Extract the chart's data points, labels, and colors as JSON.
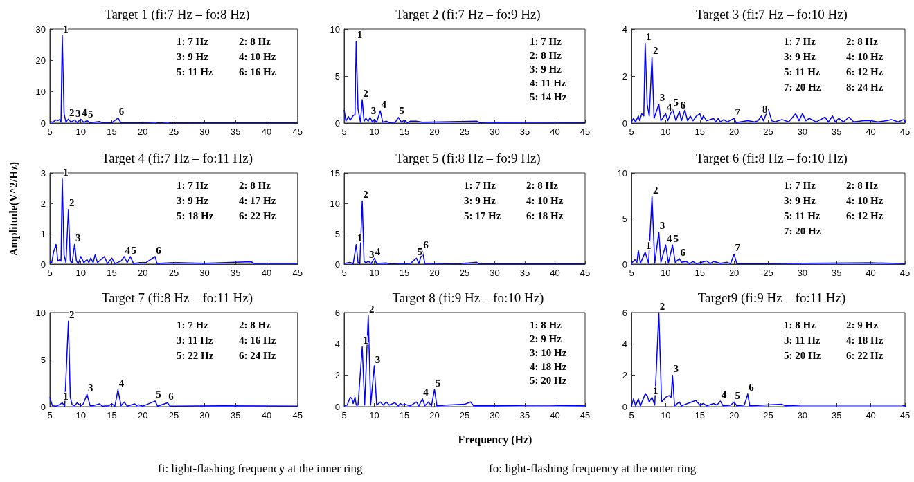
{
  "chart_data": [
    {
      "type": "line",
      "title": "Target 1 (fi:7 Hz – fo:8 Hz)",
      "color": "#0000ff",
      "xlim": [
        5,
        45
      ],
      "xticks": [
        5,
        10,
        15,
        20,
        25,
        30,
        35,
        40,
        45
      ],
      "ylim": [
        0,
        30
      ],
      "yticks": [
        0,
        10,
        20,
        30
      ],
      "x": [
        5,
        5.5,
        6,
        6.3,
        6.6,
        6.8,
        7,
        7.3,
        7.6,
        8,
        8.4,
        9,
        9.4,
        10,
        10.5,
        11,
        11.5,
        13,
        13.5,
        14,
        15,
        16,
        16.5,
        20,
        22,
        22.5,
        24,
        24.5,
        30,
        45
      ],
      "values": [
        0.5,
        0.3,
        1,
        0.8,
        1.2,
        0.3,
        28,
        3,
        0.3,
        1.3,
        0.3,
        1,
        0.2,
        1.2,
        0.2,
        0.8,
        0.1,
        0.5,
        0.1,
        0.2,
        0.1,
        1.6,
        0.1,
        0.1,
        0.3,
        0.05,
        0.3,
        0.05,
        0.1,
        0.1
      ],
      "annotations": [
        "1: 7 Hz",
        "2: 8 Hz",
        "3: 9 Hz",
        "4: 10 Hz",
        "5: 11 Hz",
        "6: 16 Hz",
        {
          "text": "1",
          "x": 7,
          "y": 28
        },
        {
          "text": "2",
          "x": 8,
          "y": 1.3
        },
        {
          "text": "3",
          "x": 9,
          "y": 1
        },
        {
          "text": "4",
          "x": 10,
          "y": 1.2
        },
        {
          "text": "5",
          "x": 11,
          "y": 0.8
        },
        {
          "text": "6",
          "x": 16,
          "y": 1.6
        }
      ]
    },
    {
      "type": "line",
      "title": "Target 2 (fi:7 Hz – fo:9 Hz)",
      "color": "#0000ff",
      "xlim": [
        5,
        45
      ],
      "xticks": [
        5,
        10,
        15,
        20,
        25,
        30,
        35,
        40,
        45
      ],
      "ylim": [
        0,
        10
      ],
      "yticks": [
        0,
        5,
        10
      ],
      "x": [
        5,
        5.3,
        5.7,
        6,
        6.5,
        6.8,
        7,
        7.3,
        7.7,
        8,
        8.3,
        8.6,
        9,
        9.3,
        9.7,
        10,
        10.4,
        11,
        11.4,
        12,
        12.5,
        13.5,
        14,
        14.5,
        15,
        15.5,
        16,
        17,
        18,
        27,
        27.5,
        30,
        45
      ],
      "values": [
        1.4,
        0.2,
        0.7,
        0.3,
        0.8,
        0.9,
        8.7,
        1.5,
        0.1,
        2.5,
        0.2,
        0.5,
        0.2,
        0.6,
        0.1,
        0.4,
        0.1,
        1.3,
        0.1,
        0.2,
        0.05,
        0.1,
        0.6,
        0.1,
        0.3,
        0.05,
        0.2,
        0.2,
        0.1,
        0.2,
        0.05,
        0.1,
        0.05
      ],
      "annotations": [
        "1: 7 Hz",
        "2: 8 Hz",
        "3: 9 Hz",
        "4: 11 Hz",
        "5: 14 Hz",
        {
          "text": "1",
          "x": 7,
          "y": 8.7
        },
        {
          "text": "2",
          "x": 8,
          "y": 2.5
        },
        {
          "text": "3",
          "x": 9.3,
          "y": 0.6
        },
        {
          "text": "4",
          "x": 11,
          "y": 1.3
        },
        {
          "text": "5",
          "x": 14,
          "y": 0.6
        }
      ]
    },
    {
      "type": "line",
      "title": "Target 3 (fi:7 Hz – fo:10 Hz)",
      "color": "#0000ff",
      "xlim": [
        5,
        45
      ],
      "xticks": [
        5,
        10,
        15,
        20,
        25,
        30,
        35,
        40,
        45
      ],
      "ylim": [
        0,
        4
      ],
      "yticks": [
        0,
        2,
        4
      ],
      "x": [
        5,
        5.3,
        5.6,
        6,
        6.2,
        6.5,
        6.8,
        7,
        7.3,
        7.6,
        8,
        8.3,
        9,
        9.3,
        10,
        10.3,
        11,
        11.5,
        12,
        12.3,
        12.8,
        13.2,
        13.6,
        14,
        14.5,
        15,
        15.3,
        15.5,
        16,
        17,
        17.3,
        17.7,
        18,
        18.5,
        19,
        20,
        20.3,
        22,
        23,
        23.5,
        24,
        24.3,
        25,
        25.5,
        26,
        27,
        28,
        29,
        29.5,
        30,
        30.5,
        31,
        32,
        33.3,
        33.8,
        34.4,
        34.8,
        35.3,
        36,
        36.8,
        37.5,
        39,
        40,
        41,
        42.3,
        43,
        44,
        44.8,
        45
      ],
      "values": [
        0.05,
        0.2,
        0.05,
        0.3,
        0.1,
        0.4,
        0.3,
        3.4,
        0.8,
        0.3,
        2.8,
        0.2,
        0.8,
        0.1,
        0.4,
        0.1,
        0.6,
        0.1,
        0.5,
        0.1,
        0.55,
        0.1,
        0.3,
        0.1,
        0.3,
        0.4,
        0.15,
        0.3,
        0.1,
        0.2,
        0.05,
        0.2,
        0.05,
        0.15,
        0.05,
        0.2,
        0.02,
        0.1,
        0.05,
        0.1,
        0.3,
        0.1,
        0.6,
        0.1,
        0.05,
        0.15,
        0.05,
        0.4,
        0.1,
        0.4,
        0.1,
        0.2,
        0.05,
        0.25,
        0.05,
        0.3,
        0.05,
        0.2,
        0.05,
        0.25,
        0.05,
        0.1,
        0.1,
        0.05,
        0.1,
        0.15,
        0.05,
        0.15,
        0.05
      ],
      "annotations": [
        "1: 7 Hz",
        "2: 8 Hz",
        "3: 9 Hz",
        "4: 10 Hz",
        "5: 11 Hz",
        "6: 12 Hz",
        "7: 20 Hz",
        "8: 24 Hz",
        {
          "text": "1",
          "x": 7,
          "y": 3.4
        },
        {
          "text": "2",
          "x": 8,
          "y": 2.8
        },
        {
          "text": "3",
          "x": 9,
          "y": 0.8
        },
        {
          "text": "4",
          "x": 10,
          "y": 0.4
        },
        {
          "text": "5",
          "x": 11,
          "y": 0.6
        },
        {
          "text": "6",
          "x": 12,
          "y": 0.5
        },
        {
          "text": "7",
          "x": 20,
          "y": 0.2
        },
        {
          "text": "8",
          "x": 24,
          "y": 0.3
        }
      ]
    },
    {
      "type": "line",
      "title": "Target 4 (fi:7 Hz – fo:11 Hz)",
      "color": "#0000ff",
      "xlim": [
        5,
        45
      ],
      "xticks": [
        5,
        10,
        15,
        20,
        25,
        30,
        35,
        40,
        45
      ],
      "ylim": [
        0,
        3
      ],
      "yticks": [
        0,
        1,
        2,
        3
      ],
      "x": [
        5,
        5.3,
        5.6,
        6,
        6.3,
        6.6,
        6.8,
        7,
        7.3,
        7.6,
        8,
        8.3,
        8.6,
        9,
        9.3,
        9.6,
        10,
        10.5,
        11,
        11.3,
        11.6,
        12,
        12.3,
        12.7,
        13.8,
        14.3,
        15,
        15.5,
        16.5,
        17,
        17.5,
        18,
        18.5,
        19.5,
        20.5,
        22,
        22.3,
        25,
        30,
        37.5,
        38,
        45
      ],
      "values": [
        0.1,
        0.05,
        0.4,
        0.65,
        0.1,
        0.15,
        0.1,
        2.8,
        0.3,
        0.05,
        1.8,
        0.1,
        0.05,
        0.65,
        0.1,
        0.02,
        0.25,
        0.05,
        0.15,
        0.05,
        0.2,
        0.05,
        0.3,
        0.05,
        0.25,
        0.02,
        0.2,
        0.02,
        0.1,
        0.25,
        0.05,
        0.25,
        0.02,
        0.05,
        0.05,
        0.25,
        0.02,
        0.05,
        0.03,
        0.08,
        0.02,
        0.02
      ],
      "annotations": [
        "1: 7 Hz",
        "2: 8 Hz",
        "3: 9 Hz",
        "4: 17 Hz",
        "5: 18 Hz",
        "6: 22 Hz",
        {
          "text": "1",
          "x": 7,
          "y": 2.8
        },
        {
          "text": "2",
          "x": 8,
          "y": 1.8
        },
        {
          "text": "3",
          "x": 9,
          "y": 0.65
        },
        {
          "text": "4",
          "x": 17,
          "y": 0.25
        },
        {
          "text": "5",
          "x": 18,
          "y": 0.25
        },
        {
          "text": "6",
          "x": 22,
          "y": 0.25
        }
      ]
    },
    {
      "type": "line",
      "title": "Target 5 (fi:8 Hz – fo:9 Hz)",
      "color": "#0000ff",
      "xlim": [
        5,
        45
      ],
      "xticks": [
        5,
        10,
        15,
        20,
        25,
        30,
        35,
        40,
        45
      ],
      "ylim": [
        0,
        15
      ],
      "yticks": [
        0,
        5,
        10,
        15
      ],
      "x": [
        5,
        6,
        6.5,
        7,
        7.3,
        7.6,
        8,
        8.3,
        8.6,
        9,
        9.5,
        10,
        10.4,
        12,
        12.5,
        14.5,
        16,
        17,
        17.4,
        18,
        18.4,
        20,
        24,
        27,
        27.4,
        35,
        45
      ],
      "values": [
        0.1,
        0.3,
        0.05,
        3.2,
        0.3,
        0.05,
        10.4,
        0.5,
        0.2,
        0.5,
        0.1,
        1.0,
        0.1,
        0.2,
        0.05,
        0.1,
        0.1,
        1.0,
        0.1,
        2.1,
        0.1,
        0.1,
        0.05,
        0.3,
        0.05,
        0.05,
        0.05
      ],
      "annotations": [
        "1: 7 Hz",
        "2: 8 Hz",
        "3: 9 Hz",
        "4: 10 Hz",
        "5: 17 Hz",
        "6: 18 Hz",
        {
          "text": "1",
          "x": 7,
          "y": 3.2
        },
        {
          "text": "2",
          "x": 8,
          "y": 10.4
        },
        {
          "text": "3",
          "x": 9,
          "y": 0.5
        },
        {
          "text": "4",
          "x": 10,
          "y": 1.0
        },
        {
          "text": "5",
          "x": 17,
          "y": 1.0
        },
        {
          "text": "6",
          "x": 18,
          "y": 2.1
        }
      ]
    },
    {
      "type": "line",
      "title": "Target 6 (fi:8 Hz – fo:10 Hz)",
      "color": "#0000ff",
      "xlim": [
        5,
        45
      ],
      "xticks": [
        5,
        10,
        15,
        20,
        25,
        30,
        35,
        40,
        45
      ],
      "ylim": [
        0,
        10
      ],
      "yticks": [
        0,
        5,
        10
      ],
      "x": [
        5,
        5.5,
        5.8,
        6,
        6.3,
        7,
        7.5,
        8,
        8.4,
        9,
        9.3,
        10,
        10.4,
        11,
        11.4,
        12,
        12.3,
        13,
        13.5,
        14,
        14.5,
        16,
        16.5,
        17,
        18,
        19,
        19.5,
        20,
        20.4,
        25,
        30,
        40,
        45
      ],
      "values": [
        0.1,
        0.5,
        0.2,
        1.5,
        0.1,
        1.3,
        0.1,
        7.4,
        0.1,
        3.5,
        0.2,
        2.1,
        0.1,
        2.1,
        0.2,
        0.6,
        0.2,
        0.3,
        0.05,
        0.3,
        0.05,
        0.35,
        0.05,
        0.3,
        0.1,
        0.2,
        0.05,
        1.1,
        0.05,
        0.05,
        0.1,
        0.15,
        0.05
      ],
      "annotations": [
        "1: 7 Hz",
        "2: 8 Hz",
        "3: 9 Hz",
        "4: 10 Hz",
        "5: 11 Hz",
        "6: 12 Hz",
        "7: 20 Hz",
        {
          "text": "1",
          "x": 7,
          "y": 1.3
        },
        {
          "text": "2",
          "x": 8,
          "y": 7.4
        },
        {
          "text": "3",
          "x": 9,
          "y": 3.5
        },
        {
          "text": "4",
          "x": 10,
          "y": 2.1
        },
        {
          "text": "5",
          "x": 11,
          "y": 2.1
        },
        {
          "text": "6",
          "x": 12,
          "y": 0.6
        },
        {
          "text": "7",
          "x": 20,
          "y": 1.1
        }
      ]
    },
    {
      "type": "line",
      "title": "Target 7 (fi:8 Hz – fo:11 Hz)",
      "color": "#0000ff",
      "xlim": [
        5,
        45
      ],
      "xticks": [
        5,
        10,
        15,
        20,
        25,
        30,
        35,
        40,
        45
      ],
      "ylim": [
        0,
        10
      ],
      "yticks": [
        0,
        5,
        10
      ],
      "x": [
        5,
        5.4,
        6,
        6.5,
        7,
        7.4,
        8,
        8.3,
        8.6,
        9,
        9.4,
        10,
        10.4,
        11,
        11.5,
        12,
        13,
        13.5,
        14.5,
        15,
        15.5,
        16,
        16.5,
        17,
        17.5,
        18.7,
        19,
        19.3,
        20,
        22,
        22.4,
        24,
        24.4,
        33,
        45
      ],
      "values": [
        1.0,
        0.1,
        0.05,
        0.2,
        0.4,
        0.05,
        9.1,
        1.0,
        0.2,
        0.1,
        0.4,
        0.1,
        0.3,
        1.3,
        0.1,
        0.1,
        0.3,
        0.05,
        0.1,
        0.3,
        0.05,
        1.8,
        0.1,
        0.5,
        0.05,
        0.3,
        0.1,
        0.2,
        0.05,
        0.6,
        0.05,
        0.4,
        0.05,
        0.1,
        0.05
      ],
      "annotations": [
        "1: 7 Hz",
        "2: 8 Hz",
        "3: 11 Hz",
        "4: 16 Hz",
        "5: 22 Hz",
        "6: 24 Hz",
        {
          "text": "1",
          "x": 7,
          "y": 0.4
        },
        {
          "text": "2",
          "x": 8,
          "y": 9.1
        },
        {
          "text": "3",
          "x": 11,
          "y": 1.3
        },
        {
          "text": "4",
          "x": 16,
          "y": 1.8
        },
        {
          "text": "5",
          "x": 22,
          "y": 0.6
        },
        {
          "text": "6",
          "x": 24,
          "y": 0.4
        }
      ]
    },
    {
      "type": "line",
      "title": "Target 8 (fi:9 Hz – fo:10 Hz)",
      "color": "#0000ff",
      "xlim": [
        5,
        45
      ],
      "xticks": [
        5,
        10,
        15,
        20,
        25,
        30,
        35,
        40,
        45
      ],
      "ylim": [
        0,
        6
      ],
      "yticks": [
        0,
        2,
        4,
        6
      ],
      "x": [
        5,
        5.5,
        6,
        6.3,
        6.5,
        6.8,
        7,
        7.3,
        8,
        8.4,
        9,
        9.4,
        10,
        10.4,
        11,
        11.5,
        12,
        12.5,
        13.4,
        14,
        14.3,
        14.7,
        15,
        16,
        17,
        17.4,
        18,
        18.4,
        19,
        19.5,
        20,
        20.4,
        22,
        25,
        26,
        26.5,
        30,
        37,
        45
      ],
      "values": [
        0.05,
        0.1,
        0.6,
        0.5,
        0.2,
        0.6,
        0.1,
        0.1,
        3.8,
        0.1,
        5.8,
        0.1,
        2.6,
        0.1,
        0.3,
        0.1,
        0.3,
        0.1,
        0.25,
        0.05,
        0.2,
        0.1,
        0.15,
        0.05,
        0.3,
        0.05,
        0.5,
        0.05,
        0.3,
        0.05,
        1.1,
        0.05,
        0.1,
        0.15,
        0.3,
        0.05,
        0.05,
        0.1,
        0.05
      ],
      "annotations": [
        "1: 8 Hz",
        "2: 9 Hz",
        "3: 10 Hz",
        "4: 18 Hz",
        "5: 20 Hz",
        {
          "text": "1",
          "x": 8,
          "y": 3.8
        },
        {
          "text": "2",
          "x": 9,
          "y": 5.8
        },
        {
          "text": "3",
          "x": 10,
          "y": 2.6
        },
        {
          "text": "4",
          "x": 18,
          "y": 0.5
        },
        {
          "text": "5",
          "x": 20,
          "y": 1.1
        }
      ]
    },
    {
      "type": "line",
      "title": "Target9 (fi:9 Hz – fo:11 Hz)",
      "color": "#0000ff",
      "xlim": [
        5,
        45
      ],
      "xticks": [
        5,
        10,
        15,
        20,
        25,
        30,
        35,
        40,
        45
      ],
      "ylim": [
        0,
        6
      ],
      "yticks": [
        0,
        2,
        4,
        6
      ],
      "x": [
        5,
        5.3,
        5.6,
        6,
        6.3,
        7,
        7.3,
        7.6,
        8,
        8.4,
        9,
        9.4,
        10,
        10.5,
        10.8,
        11,
        11.3,
        12,
        12.3,
        14.4,
        15,
        15.5,
        16,
        17,
        17.5,
        18,
        18.4,
        19.5,
        20,
        20.4,
        21.5,
        22,
        22.3,
        27,
        27.5,
        30,
        36,
        44.5,
        45
      ],
      "values": [
        0.05,
        0.5,
        0.05,
        0.5,
        0.05,
        0.8,
        0.7,
        0.3,
        0.6,
        0.1,
        6.0,
        0.3,
        0.6,
        0.7,
        0.6,
        2.0,
        0.05,
        0.3,
        0.05,
        0.4,
        0.1,
        0.2,
        0.05,
        0.2,
        0.1,
        0.35,
        0.05,
        0.1,
        0.3,
        0.05,
        0.1,
        0.8,
        0.05,
        0.15,
        0.05,
        0.1,
        0.1,
        0.1,
        0.05
      ],
      "annotations": [
        "1: 8 Hz",
        "2: 9 Hz",
        "3: 11 Hz",
        "4: 18 Hz",
        "5: 20 Hz",
        "6: 22 Hz",
        {
          "text": "1",
          "x": 8,
          "y": 0.6
        },
        {
          "text": "2",
          "x": 9,
          "y": 6.0
        },
        {
          "text": "3",
          "x": 11,
          "y": 2.0
        },
        {
          "text": "4",
          "x": 18,
          "y": 0.35
        },
        {
          "text": "5",
          "x": 20,
          "y": 0.3
        },
        {
          "text": "6",
          "x": 22,
          "y": 0.8
        }
      ]
    },
    {
      "type": "other",
      "xlabel": "Frequency (Hz)",
      "ylabel": "Amplitude(V^2/Hz)",
      "annotations": [
        "fi: light-flashing frequency at the inner ring",
        "fo: light-flashing frequency at the outer ring"
      ]
    }
  ]
}
